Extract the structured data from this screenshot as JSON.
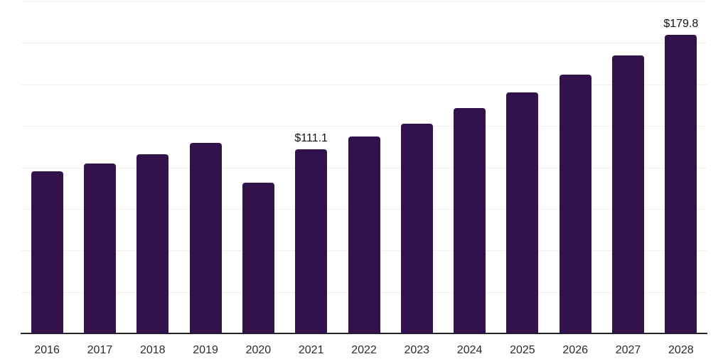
{
  "chart_data": {
    "type": "bar",
    "title": "",
    "xlabel": "",
    "ylabel": "",
    "categories": [
      "2016",
      "2017",
      "2018",
      "2019",
      "2020",
      "2021",
      "2022",
      "2023",
      "2024",
      "2025",
      "2026",
      "2027",
      "2028"
    ],
    "values": [
      97.6,
      102.5,
      107.8,
      114.6,
      90.7,
      111.1,
      118.6,
      126.4,
      135.8,
      145.1,
      155.7,
      167.5,
      179.8
    ],
    "data_labels": {
      "2021": "$111.1",
      "2028": "$179.8"
    },
    "ylim": [
      0,
      200
    ],
    "gridline_step": 25,
    "grid": true,
    "y_tick_labels_visible": false,
    "legend": "none",
    "colors": {
      "bar": "#32124B",
      "axis_line": "#262626",
      "gridline": "#f0f0f0",
      "tick_label": "#2b2b2b",
      "data_label": "#111111",
      "background": "#ffffff"
    }
  }
}
